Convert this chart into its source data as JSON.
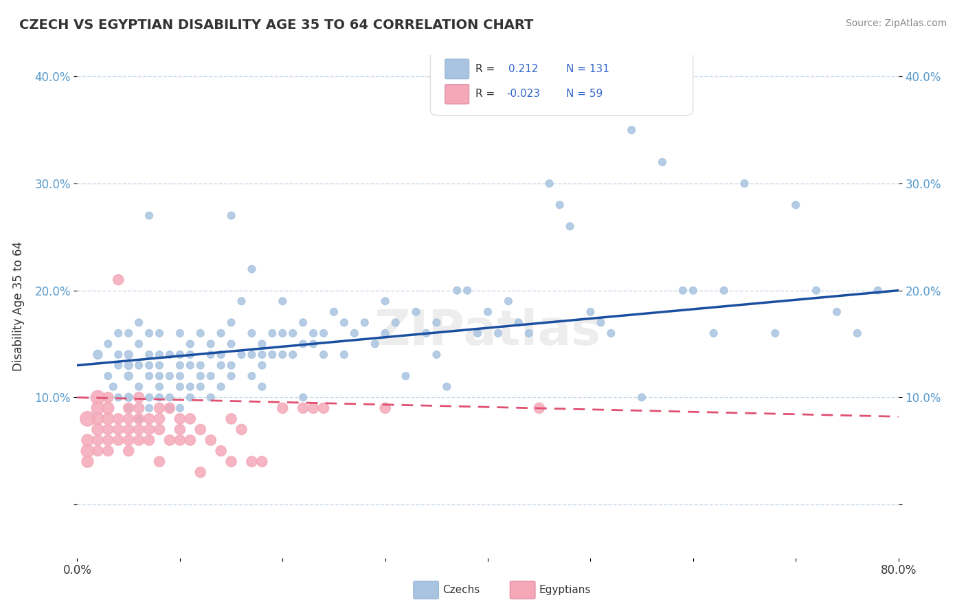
{
  "title": "CZECH VS EGYPTIAN DISABILITY AGE 35 TO 64 CORRELATION CHART",
  "source_text": "Source: ZipAtlas.com",
  "xlabel": "",
  "ylabel": "Disability Age 35 to 64",
  "xlim": [
    0.0,
    0.8
  ],
  "ylim": [
    -0.05,
    0.42
  ],
  "xticks": [
    0.0,
    0.1,
    0.2,
    0.3,
    0.4,
    0.5,
    0.6,
    0.7,
    0.8
  ],
  "yticks": [
    0.0,
    0.1,
    0.2,
    0.3,
    0.4
  ],
  "xticklabels": [
    "0.0%",
    "",
    "",
    "",
    "",
    "",
    "",
    "",
    "80.0%"
  ],
  "yticklabels": [
    "",
    "10.0%",
    "20.0%",
    "30.0%",
    "40.0%"
  ],
  "czech_R": 0.212,
  "czech_N": 131,
  "egypt_R": -0.023,
  "egypt_N": 59,
  "czech_color": "#a8c4e0",
  "egypt_color": "#f4a8b8",
  "trend_czech_color": "#1a4fa0",
  "trend_egypt_color": "#e05070",
  "background_color": "#ffffff",
  "grid_color": "#c8d8e8",
  "watermark": "ZIPatlas",
  "czech_x": [
    0.02,
    0.03,
    0.03,
    0.035,
    0.04,
    0.04,
    0.04,
    0.04,
    0.05,
    0.05,
    0.05,
    0.05,
    0.05,
    0.05,
    0.06,
    0.06,
    0.06,
    0.06,
    0.06,
    0.07,
    0.07,
    0.07,
    0.07,
    0.07,
    0.07,
    0.07,
    0.08,
    0.08,
    0.08,
    0.08,
    0.08,
    0.08,
    0.09,
    0.09,
    0.09,
    0.09,
    0.1,
    0.1,
    0.1,
    0.1,
    0.1,
    0.1,
    0.11,
    0.11,
    0.11,
    0.11,
    0.11,
    0.12,
    0.12,
    0.12,
    0.12,
    0.13,
    0.13,
    0.13,
    0.13,
    0.14,
    0.14,
    0.14,
    0.14,
    0.15,
    0.15,
    0.15,
    0.15,
    0.15,
    0.16,
    0.16,
    0.17,
    0.17,
    0.17,
    0.17,
    0.18,
    0.18,
    0.18,
    0.18,
    0.19,
    0.19,
    0.2,
    0.2,
    0.2,
    0.21,
    0.21,
    0.22,
    0.22,
    0.22,
    0.23,
    0.23,
    0.24,
    0.24,
    0.25,
    0.26,
    0.26,
    0.27,
    0.28,
    0.29,
    0.3,
    0.3,
    0.31,
    0.32,
    0.33,
    0.34,
    0.35,
    0.35,
    0.36,
    0.37,
    0.38,
    0.39,
    0.4,
    0.41,
    0.42,
    0.43,
    0.44,
    0.46,
    0.47,
    0.48,
    0.5,
    0.51,
    0.52,
    0.54,
    0.55,
    0.57,
    0.59,
    0.6,
    0.62,
    0.63,
    0.65,
    0.68,
    0.7,
    0.72,
    0.74,
    0.76,
    0.78
  ],
  "czech_y": [
    0.14,
    0.12,
    0.15,
    0.11,
    0.13,
    0.14,
    0.16,
    0.1,
    0.1,
    0.12,
    0.13,
    0.14,
    0.09,
    0.16,
    0.11,
    0.13,
    0.15,
    0.17,
    0.08,
    0.12,
    0.13,
    0.14,
    0.1,
    0.16,
    0.09,
    0.27,
    0.12,
    0.13,
    0.11,
    0.14,
    0.1,
    0.16,
    0.12,
    0.14,
    0.1,
    0.09,
    0.13,
    0.14,
    0.12,
    0.11,
    0.16,
    0.09,
    0.13,
    0.15,
    0.11,
    0.14,
    0.1,
    0.12,
    0.16,
    0.11,
    0.13,
    0.14,
    0.1,
    0.15,
    0.12,
    0.16,
    0.13,
    0.11,
    0.14,
    0.15,
    0.17,
    0.12,
    0.13,
    0.27,
    0.14,
    0.19,
    0.14,
    0.12,
    0.16,
    0.22,
    0.15,
    0.13,
    0.14,
    0.11,
    0.16,
    0.14,
    0.14,
    0.16,
    0.19,
    0.14,
    0.16,
    0.15,
    0.17,
    0.1,
    0.16,
    0.15,
    0.16,
    0.14,
    0.18,
    0.17,
    0.14,
    0.16,
    0.17,
    0.15,
    0.16,
    0.19,
    0.17,
    0.12,
    0.18,
    0.16,
    0.14,
    0.17,
    0.11,
    0.2,
    0.2,
    0.16,
    0.18,
    0.16,
    0.19,
    0.17,
    0.16,
    0.3,
    0.28,
    0.26,
    0.18,
    0.17,
    0.16,
    0.35,
    0.1,
    0.32,
    0.2,
    0.2,
    0.16,
    0.2,
    0.3,
    0.16,
    0.28,
    0.2,
    0.18,
    0.16,
    0.2
  ],
  "czech_sizes": [
    30,
    20,
    20,
    20,
    20,
    20,
    20,
    20,
    25,
    25,
    25,
    25,
    20,
    20,
    20,
    20,
    20,
    20,
    20,
    20,
    20,
    20,
    20,
    20,
    20,
    20,
    20,
    20,
    20,
    20,
    20,
    20,
    20,
    20,
    20,
    20,
    20,
    20,
    20,
    20,
    20,
    20,
    20,
    20,
    20,
    20,
    20,
    20,
    20,
    20,
    20,
    20,
    20,
    20,
    20,
    20,
    20,
    20,
    20,
    20,
    20,
    20,
    20,
    20,
    20,
    20,
    20,
    20,
    20,
    20,
    20,
    20,
    20,
    20,
    20,
    20,
    20,
    20,
    20,
    20,
    20,
    20,
    20,
    20,
    20,
    20,
    20,
    20,
    20,
    20,
    20,
    20,
    20,
    20,
    20,
    20,
    20,
    20,
    20,
    20,
    20,
    20,
    20,
    20,
    20,
    20,
    20,
    20,
    20,
    20,
    20,
    20,
    20,
    20,
    20,
    20,
    20,
    20,
    20,
    20,
    20,
    20,
    20,
    20,
    20,
    20,
    20,
    20,
    20,
    20,
    20
  ],
  "egypt_x": [
    0.01,
    0.01,
    0.01,
    0.01,
    0.02,
    0.02,
    0.02,
    0.02,
    0.02,
    0.02,
    0.03,
    0.03,
    0.03,
    0.03,
    0.03,
    0.03,
    0.04,
    0.04,
    0.04,
    0.04,
    0.05,
    0.05,
    0.05,
    0.05,
    0.05,
    0.06,
    0.06,
    0.06,
    0.06,
    0.06,
    0.07,
    0.07,
    0.07,
    0.08,
    0.08,
    0.08,
    0.08,
    0.09,
    0.09,
    0.1,
    0.1,
    0.1,
    0.11,
    0.11,
    0.12,
    0.12,
    0.13,
    0.14,
    0.15,
    0.15,
    0.16,
    0.17,
    0.18,
    0.2,
    0.22,
    0.23,
    0.24,
    0.3,
    0.45
  ],
  "egypt_y": [
    0.08,
    0.05,
    0.06,
    0.04,
    0.1,
    0.09,
    0.08,
    0.07,
    0.06,
    0.05,
    0.09,
    0.08,
    0.07,
    0.06,
    0.1,
    0.05,
    0.08,
    0.07,
    0.21,
    0.06,
    0.08,
    0.07,
    0.06,
    0.05,
    0.09,
    0.09,
    0.08,
    0.07,
    0.06,
    0.1,
    0.08,
    0.07,
    0.06,
    0.09,
    0.08,
    0.07,
    0.04,
    0.09,
    0.06,
    0.07,
    0.08,
    0.06,
    0.08,
    0.06,
    0.07,
    0.03,
    0.06,
    0.05,
    0.08,
    0.04,
    0.07,
    0.04,
    0.04,
    0.09,
    0.09,
    0.09,
    0.09,
    0.09,
    0.09
  ],
  "egypt_sizes": [
    80,
    60,
    50,
    50,
    70,
    60,
    50,
    50,
    40,
    40,
    50,
    50,
    40,
    40,
    40,
    40,
    40,
    40,
    40,
    40,
    40,
    40,
    40,
    40,
    40,
    40,
    40,
    40,
    40,
    40,
    40,
    40,
    40,
    40,
    40,
    40,
    40,
    40,
    40,
    40,
    40,
    40,
    40,
    40,
    40,
    40,
    40,
    40,
    40,
    40,
    40,
    40,
    40,
    40,
    40,
    40,
    40,
    40,
    40
  ]
}
